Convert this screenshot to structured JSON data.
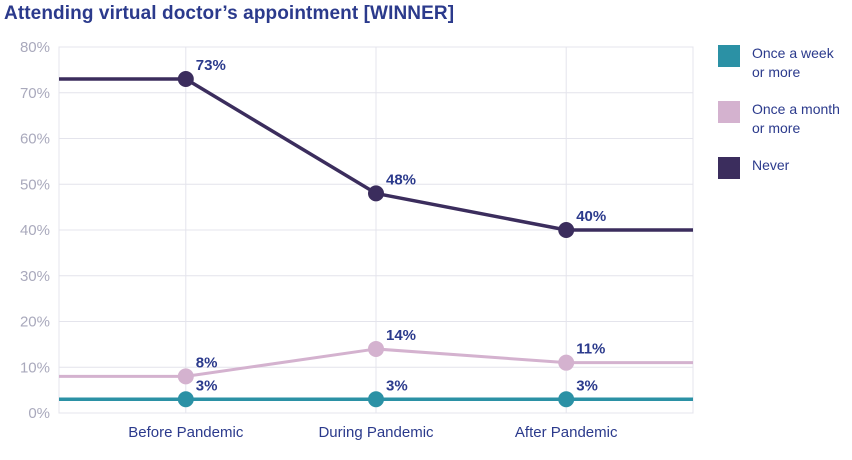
{
  "title": "Attending virtual doctor’s appointment [WINNER]",
  "chart_data": {
    "type": "line",
    "categories": [
      "Before Pandemic",
      "During Pandemic",
      "After Pandemic"
    ],
    "series": [
      {
        "name": "Once a week or more",
        "legend_lines": [
          "Once a week",
          "or more"
        ],
        "color": "#2B91A5",
        "values": [
          3,
          3,
          3
        ],
        "point_radius": 8,
        "stroke_width": 3.5
      },
      {
        "name": "Once a month or more",
        "legend_lines": [
          "Once a month",
          "or more"
        ],
        "color": "#D4B2CF",
        "values": [
          8,
          14,
          11
        ],
        "point_radius": 8,
        "stroke_width": 3
      },
      {
        "name": "Never",
        "legend_lines": [
          "Never"
        ],
        "color": "#3B2D5D",
        "values": [
          73,
          48,
          40
        ],
        "point_radius": 8,
        "stroke_width": 3.5
      }
    ],
    "title": "Attending virtual doctor’s appointment [WINNER]",
    "xlabel": "",
    "ylabel": "",
    "ylim": [
      0,
      80
    ],
    "ytick_step": 10,
    "ytick_suffix": "%",
    "data_label_suffix": "%",
    "grid": true,
    "legend_position": "right"
  },
  "colors": {
    "title_text": "#2B3A8C",
    "data_label_text": "#2B3A8C",
    "x_axis_text": "#2B3A8C",
    "y_axis_text": "#A9A9BC",
    "gridline": "#E4E4EC"
  }
}
